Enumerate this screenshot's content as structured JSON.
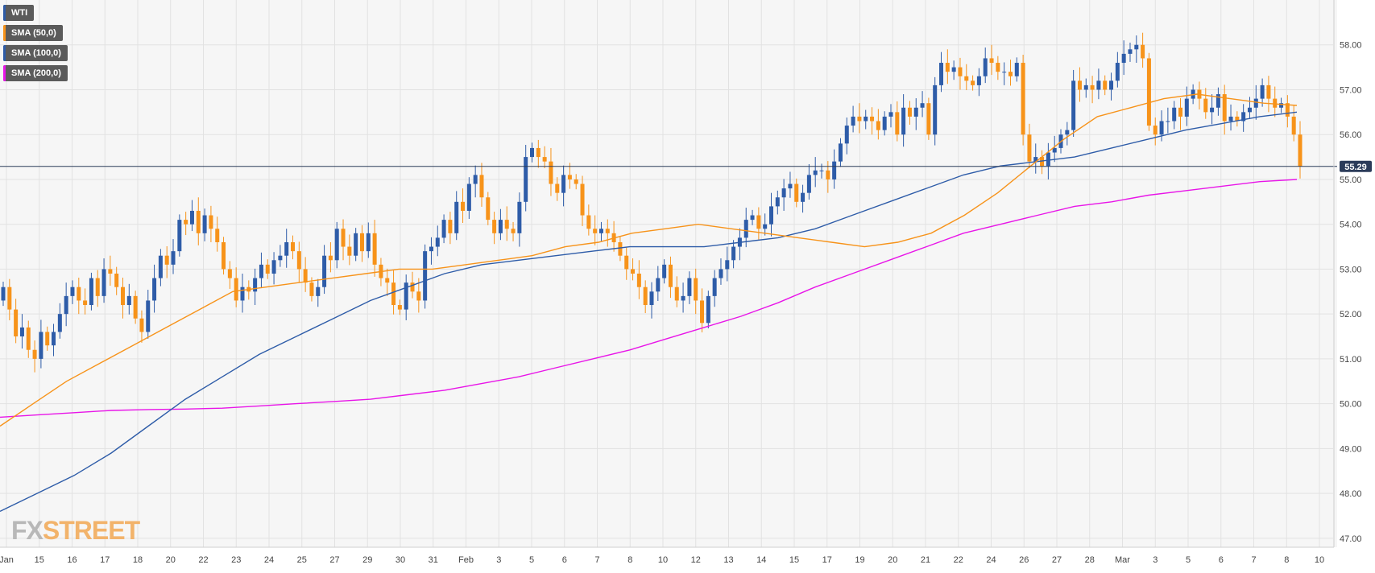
{
  "legend": [
    {
      "label": "WTI",
      "color": "#2e5ca8"
    },
    {
      "label": "SMA (50,0)",
      "color": "#f7931a"
    },
    {
      "label": "SMA (100,0)",
      "color": "#2e5ca8"
    },
    {
      "label": "SMA (200,0)",
      "color": "#e815e8"
    }
  ],
  "logo": {
    "part1": "FX",
    "part2": "STREET"
  },
  "price_tag": "55.29",
  "colors": {
    "up": "#2e5ca8",
    "down": "#f7931a",
    "sma50": "#f7931a",
    "sma100": "#2e5ca8",
    "sma200": "#e815e8",
    "background": "#f6f6f6",
    "grid": "#e2e2e2",
    "price_line": "#2b3b59"
  },
  "chart_data": {
    "type": "candlestick",
    "symbol": "WTI",
    "timeframe": "4h",
    "ylim": [
      46.8,
      59.0
    ],
    "y_ticks": [
      "47.00",
      "48.00",
      "49.00",
      "50.00",
      "51.00",
      "52.00",
      "53.00",
      "54.00",
      "55.00",
      "56.00",
      "57.00",
      "58.00"
    ],
    "x_ticks": [
      "Jan",
      "15",
      "16",
      "17",
      "18",
      "20",
      "22",
      "23",
      "24",
      "25",
      "27",
      "29",
      "30",
      "31",
      "Feb",
      "3",
      "5",
      "6",
      "7",
      "8",
      "10",
      "12",
      "13",
      "14",
      "15",
      "17",
      "19",
      "20",
      "21",
      "22",
      "24",
      "26",
      "27",
      "28",
      "Mar",
      "3",
      "5",
      "6",
      "7",
      "8",
      "10"
    ],
    "current_price": 55.29,
    "close": [
      52.6,
      52.1,
      51.5,
      51.7,
      51.2,
      51.0,
      51.6,
      51.3,
      51.6,
      52.0,
      52.4,
      52.6,
      52.3,
      52.2,
      52.8,
      52.4,
      53.0,
      52.9,
      52.6,
      52.2,
      52.4,
      51.9,
      51.6,
      52.3,
      52.8,
      53.3,
      53.1,
      53.4,
      54.1,
      54.0,
      54.3,
      53.8,
      54.2,
      53.9,
      53.6,
      53.0,
      52.8,
      52.3,
      52.6,
      52.5,
      52.8,
      53.1,
      52.9,
      53.2,
      53.3,
      53.6,
      53.4,
      53.0,
      52.7,
      52.4,
      52.6,
      53.3,
      53.2,
      53.9,
      53.5,
      53.3,
      53.8,
      53.4,
      53.8,
      53.1,
      52.8,
      52.7,
      52.2,
      52.1,
      52.7,
      52.5,
      52.3,
      53.4,
      53.5,
      53.7,
      54.1,
      53.8,
      54.5,
      54.3,
      54.9,
      55.1,
      54.6,
      54.1,
      53.8,
      54.1,
      53.9,
      53.8,
      54.5,
      55.5,
      55.7,
      55.5,
      55.4,
      54.9,
      54.7,
      55.1,
      55.0,
      54.9,
      54.2,
      53.9,
      53.8,
      53.9,
      53.8,
      53.6,
      53.3,
      53.0,
      52.9,
      52.6,
      52.2,
      52.5,
      52.8,
      53.1,
      52.6,
      52.3,
      52.4,
      52.8,
      52.3,
      51.8,
      52.4,
      52.8,
      53.0,
      53.2,
      53.5,
      53.7,
      54.1,
      54.2,
      53.9,
      54.0,
      54.4,
      54.6,
      54.8,
      54.9,
      54.5,
      54.7,
      55.1,
      55.2,
      55.2,
      55.0,
      55.4,
      55.8,
      56.2,
      56.4,
      56.3,
      56.4,
      56.3,
      56.1,
      56.4,
      56.5,
      56.0,
      56.6,
      56.4,
      56.6,
      56.7,
      56.0,
      57.1,
      57.6,
      57.4,
      57.5,
      57.3,
      57.2,
      57.1,
      57.3,
      57.7,
      57.6,
      57.4,
      57.4,
      57.3,
      57.6,
      56.0,
      55.4,
      55.5,
      55.3,
      55.6,
      55.7,
      56.0,
      56.1,
      57.2,
      57.0,
      57.1,
      57.0,
      57.2,
      57.0,
      57.2,
      57.6,
      57.8,
      57.9,
      58.0,
      57.7,
      56.2,
      56.0,
      56.3,
      56.3,
      56.6,
      56.4,
      56.8,
      57.0,
      56.8,
      56.5,
      56.6,
      56.9,
      56.3,
      56.4,
      56.3,
      56.5,
      56.6,
      56.8,
      57.1,
      56.8,
      56.6,
      56.7,
      56.4,
      56.0,
      55.29
    ],
    "sma50": [
      49.5,
      50.0,
      50.5,
      50.9,
      51.3,
      51.7,
      52.1,
      52.5,
      52.6,
      52.7,
      52.8,
      52.9,
      53.0,
      53.0,
      53.1,
      53.2,
      53.3,
      53.5,
      53.6,
      53.8,
      53.9,
      54.0,
      53.9,
      53.8,
      53.7,
      53.6,
      53.5,
      53.6,
      53.8,
      54.2,
      54.7,
      55.3,
      55.9,
      56.4,
      56.6,
      56.8,
      56.9,
      56.8,
      56.7,
      56.65
    ],
    "sma100": [
      47.6,
      48.0,
      48.4,
      48.9,
      49.5,
      50.1,
      50.6,
      51.1,
      51.5,
      51.9,
      52.3,
      52.6,
      52.9,
      53.1,
      53.2,
      53.3,
      53.4,
      53.5,
      53.5,
      53.5,
      53.6,
      53.7,
      53.9,
      54.2,
      54.5,
      54.8,
      55.1,
      55.3,
      55.4,
      55.5,
      55.7,
      55.9,
      56.1,
      56.25,
      56.4,
      56.5
    ],
    "sma200": [
      49.7,
      49.75,
      49.8,
      49.85,
      49.87,
      49.88,
      49.9,
      49.95,
      50.0,
      50.05,
      50.1,
      50.2,
      50.3,
      50.45,
      50.6,
      50.8,
      51.0,
      51.2,
      51.45,
      51.7,
      51.95,
      52.25,
      52.6,
      52.9,
      53.2,
      53.5,
      53.8,
      54.0,
      54.2,
      54.4,
      54.5,
      54.65,
      54.75,
      54.85,
      54.95,
      55.0
    ]
  }
}
